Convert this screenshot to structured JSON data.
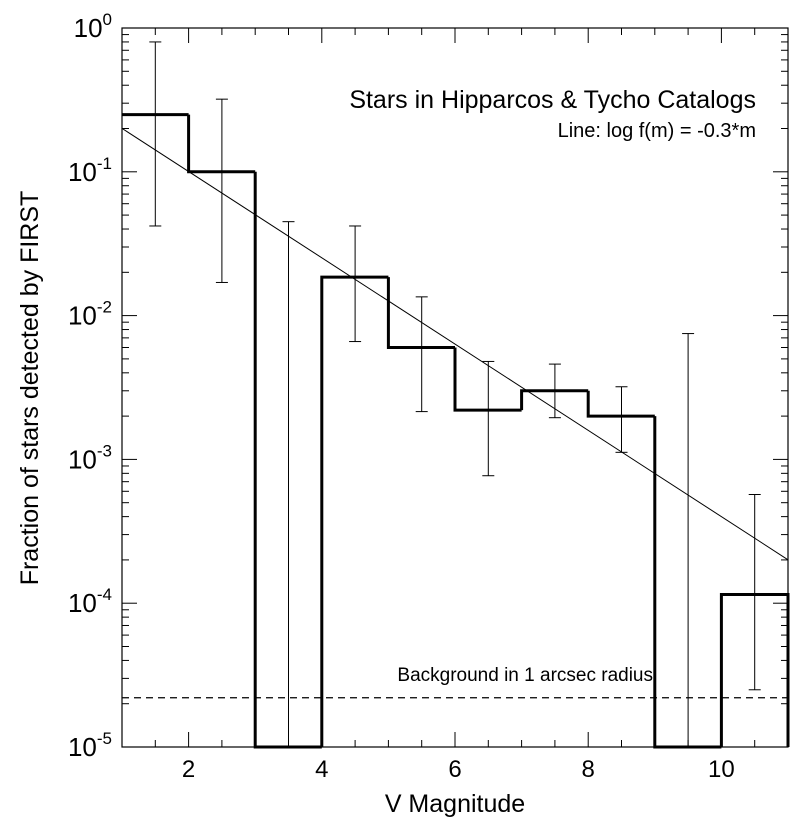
{
  "chart_data": {
    "type": "bar",
    "xlabel": "V Magnitude",
    "ylabel": "Fraction of stars detected by FIRST",
    "xlim": [
      1,
      11
    ],
    "ylim": [
      1e-05,
      1
    ],
    "y_scale": "log",
    "grid": false,
    "x_ticks": [
      {
        "value": 2,
        "label": "2"
      },
      {
        "value": 4,
        "label": "4"
      },
      {
        "value": 6,
        "label": "6"
      },
      {
        "value": 8,
        "label": "8"
      },
      {
        "value": 10,
        "label": "10"
      }
    ],
    "y_ticks": [
      {
        "value": 1,
        "base": "10",
        "exp": "0"
      },
      {
        "value": 0.1,
        "base": "10",
        "exp": "-1"
      },
      {
        "value": 0.01,
        "base": "10",
        "exp": "-2"
      },
      {
        "value": 0.001,
        "base": "10",
        "exp": "-3"
      },
      {
        "value": 0.0001,
        "base": "10",
        "exp": "-4"
      },
      {
        "value": 1e-05,
        "base": "10",
        "exp": "-5"
      }
    ],
    "histogram": {
      "bins": [
        {
          "x0": 1,
          "x1": 2,
          "value": 0.25
        },
        {
          "x0": 2,
          "x1": 3,
          "value": 0.1
        },
        {
          "x0": 3,
          "x1": 4,
          "value": 0
        },
        {
          "x0": 4,
          "x1": 5,
          "value": 0.0185
        },
        {
          "x0": 5,
          "x1": 6,
          "value": 0.006
        },
        {
          "x0": 6,
          "x1": 7,
          "value": 0.0022
        },
        {
          "x0": 7,
          "x1": 8,
          "value": 0.003
        },
        {
          "x0": 8,
          "x1": 9,
          "value": 0.002
        },
        {
          "x0": 9,
          "x1": 10,
          "value": 0
        },
        {
          "x0": 10,
          "x1": 11,
          "value": 0.000115
        }
      ]
    },
    "error_bars": [
      {
        "x": 1.5,
        "low": 0.042,
        "high": 0.8
      },
      {
        "x": 2.5,
        "low": 0.017,
        "high": 0.32
      },
      {
        "x": 3.5,
        "low": 1e-05,
        "high": 0.045
      },
      {
        "x": 4.5,
        "low": 0.0066,
        "high": 0.042
      },
      {
        "x": 5.5,
        "low": 0.00215,
        "high": 0.0135
      },
      {
        "x": 6.5,
        "low": 0.00077,
        "high": 0.0048
      },
      {
        "x": 7.5,
        "low": 0.00195,
        "high": 0.0046
      },
      {
        "x": 8.5,
        "low": 0.00112,
        "high": 0.0032
      },
      {
        "x": 9.5,
        "low": 1e-05,
        "high": 0.0075
      },
      {
        "x": 10.5,
        "low": 2.5e-05,
        "high": 0.00057
      }
    ],
    "fit_line": {
      "label": "Line: log f(m) = -0.3*m",
      "slope": -0.3,
      "intercept": -0.398,
      "x_range": [
        1,
        11
      ]
    },
    "background": {
      "label": "Background in 1 arcsec radius",
      "value": 2.2e-05
    },
    "annotations": {
      "title": "Stars in Hipparcos & Tycho Catalogs"
    }
  }
}
